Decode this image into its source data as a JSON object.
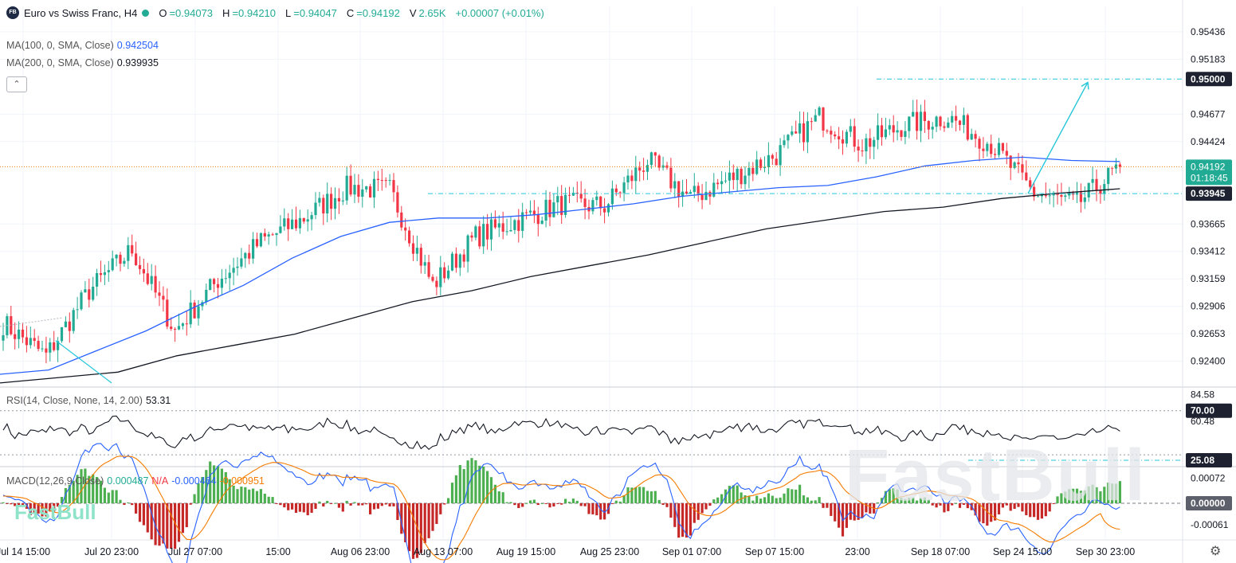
{
  "header": {
    "logo": "FB",
    "symbol": "Euro vs Swiss Franc, H4",
    "open_label": "O",
    "open": "=0.94073",
    "high_label": "H",
    "high": "=0.94210",
    "low_label": "L",
    "low": "=0.94047",
    "close_label": "C",
    "close": "=0.94192",
    "volume_label": "V",
    "volume": "2.65K",
    "change": "+0.00007 (+0.01%)"
  },
  "legends": {
    "ma100_label": "MA(100, 0, SMA, Close)",
    "ma100_value": "0.942504",
    "ma200_label": "MA(200, 0, SMA, Close)",
    "ma200_value": "0.939935",
    "rsi_label": "RSI(14, Close, None, 14, 2.00)",
    "rsi_value": "53.31",
    "macd_label": "MACD(12,26,9,Close)",
    "macd_hist": "0.000487",
    "macd_na": "N/A",
    "macd_line": "-0.000464",
    "macd_signal": "-0.000951"
  },
  "collapse_icon": "chevron-up-icon",
  "settings_icon": "gear-icon",
  "watermark": "FastBull",
  "watermark_small": "FastBull",
  "colors": {
    "up": "#22ab94",
    "down": "#f23645",
    "ma100": "#2962ff",
    "ma200": "#131722",
    "arrow": "#26c6da",
    "macd": "#2962ff",
    "signal": "#f57c00"
  },
  "chart_data": [
    {
      "type": "candlestick",
      "title": "Euro vs Swiss Franc, H4",
      "y_ticks": [
        "0.95436",
        "0.95183",
        "0.94677",
        "0.94424",
        "0.93665",
        "0.93412",
        "0.93159",
        "0.92906",
        "0.92653",
        "0.92400"
      ],
      "y_range": [
        0.9217,
        0.9567
      ],
      "x_labels": [
        "Jul 14 15:00",
        "Jul 20 23:00",
        "Jul 27 07:00",
        "15:00",
        "Aug 06 23:00",
        "Aug 13 07:00",
        "Aug 19 15:00",
        "Aug 25 23:00",
        "Sep 01 07:00",
        "Sep 07 15:00",
        "23:00",
        "Sep 18 07:00",
        "Sep 24 15:00",
        "Sep 30 23:00"
      ],
      "price_labels": [
        {
          "value": 0.95,
          "text": "0.95000",
          "style": "dark"
        },
        {
          "value": 0.94192,
          "text": "0.94192",
          "sub": "01:18:45",
          "style": "green"
        },
        {
          "value": 0.93945,
          "text": "0.93945",
          "style": "dark"
        }
      ],
      "anchors": [
        {
          "x": "Jul 14 15:00",
          "close": 0.9275
        },
        {
          "x": "Jul 20 23:00",
          "close": 0.9245
        },
        {
          "x": "Jul 27 07:00",
          "close": 0.9305
        },
        {
          "x": "",
          "close": 0.9343
        },
        {
          "x": "",
          "close": 0.9268
        },
        {
          "x": "Aug 06 23:00",
          "close": 0.9315
        },
        {
          "x": "",
          "close": 0.935
        },
        {
          "x": "Aug 13 07:00",
          "close": 0.9372
        },
        {
          "x": "",
          "close": 0.94
        },
        {
          "x": "",
          "close": 0.9398
        },
        {
          "x": "Aug 19 15:00",
          "close": 0.931
        },
        {
          "x": "",
          "close": 0.9355
        },
        {
          "x": "Aug 25 23:00",
          "close": 0.937
        },
        {
          "x": "",
          "close": 0.9385
        },
        {
          "x": "",
          "close": 0.9383
        },
        {
          "x": "Sep 01 07:00",
          "close": 0.9425
        },
        {
          "x": "",
          "close": 0.939
        },
        {
          "x": "Sep 07 15:00",
          "close": 0.941
        },
        {
          "x": "",
          "close": 0.943
        },
        {
          "x": "",
          "close": 0.9465
        },
        {
          "x": "23:00",
          "close": 0.944
        },
        {
          "x": "",
          "close": 0.9458
        },
        {
          "x": "Sep 18 07:00",
          "close": 0.9465
        },
        {
          "x": "",
          "close": 0.944
        },
        {
          "x": "",
          "close": 0.9395
        },
        {
          "x": "",
          "close": 0.9385
        },
        {
          "x": "Sep 24 15:00",
          "close": 0.94192
        }
      ],
      "series": [
        {
          "name": "MA(100, 0, SMA, Close)",
          "values": [
            0.9228,
            0.9232,
            0.925,
            0.9268,
            0.929,
            0.931,
            0.9335,
            0.9355,
            0.9368,
            0.9372,
            0.9372,
            0.9375,
            0.938,
            0.9385,
            0.9392,
            0.9396,
            0.94,
            0.9402,
            0.941,
            0.942,
            0.9425,
            0.9428,
            0.9425,
            0.9424
          ]
        },
        {
          "name": "MA(200, 0, SMA, Close)",
          "values": [
            0.922,
            0.9225,
            0.923,
            0.9245,
            0.9255,
            0.9265,
            0.928,
            0.9295,
            0.9305,
            0.9318,
            0.9328,
            0.9338,
            0.935,
            0.9362,
            0.937,
            0.9378,
            0.9382,
            0.939,
            0.9395,
            0.9399
          ]
        }
      ],
      "levels": [
        0.95,
        0.93945,
        0.94192
      ],
      "projection": {
        "from": 0.93945,
        "to": 0.9497
      }
    },
    {
      "type": "line",
      "title": "RSI(14, Close, None, 14, 2.00)",
      "y_ticks": [
        "84.58",
        "70.00",
        "60.48",
        "25.08"
      ],
      "levels": [
        70,
        30
      ],
      "y_range": [
        20,
        90
      ],
      "last": 53.31
    },
    {
      "type": "bar",
      "title": "MACD(12,26,9,Close)",
      "y_ticks": [
        "0.00072",
        "0.00000",
        "-0.00061"
      ],
      "y_range": [
        -0.001,
        0.001
      ],
      "last_hist": 0.000487,
      "last_macd": -0.000464,
      "last_signal": -0.000951
    }
  ]
}
